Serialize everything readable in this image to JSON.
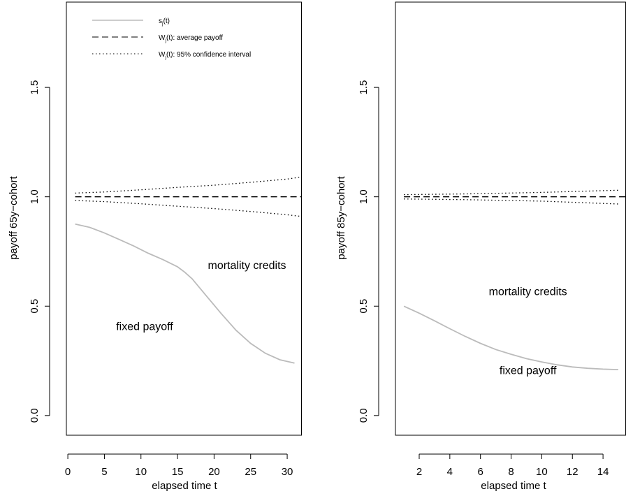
{
  "chart_data": [
    {
      "type": "line",
      "xlabel": "elapsed time t",
      "ylabel": "payoff 65y−cohort",
      "xlim": [
        -0.2,
        32
      ],
      "ylim": [
        -0.09,
        1.89
      ],
      "xticks": [
        0,
        5,
        10,
        15,
        20,
        25,
        30
      ],
      "yticks": [
        0.0,
        0.5,
        1.0,
        1.5
      ],
      "ytick_labels": [
        "0.0",
        "0.5",
        "1.0",
        "1.5"
      ],
      "legend": {
        "placement": "top-left",
        "entries": [
          {
            "label_main": "s",
            "label_sub": "j",
            "label_rest": "(t)",
            "style": "solid-gray"
          },
          {
            "label_main": "W",
            "label_sub": "j",
            "label_rest": "(t): average payoff",
            "style": "dashed"
          },
          {
            "label_main": "W",
            "label_sub": "j",
            "label_rest": "(t): 95% confidence interval",
            "style": "dotted"
          }
        ]
      },
      "annotations": [
        {
          "text": "mortality credits",
          "x": 24.5,
          "y": 0.67
        },
        {
          "text": "fixed payoff",
          "x": 10.5,
          "y": 0.39
        }
      ],
      "series": [
        {
          "style": "solid-gray",
          "color": "#bbbbbb",
          "x": [
            1,
            3,
            5,
            7,
            9,
            11,
            13,
            15,
            16,
            17,
            19,
            21,
            23,
            25,
            27,
            29,
            31
          ],
          "y": [
            0.875,
            0.86,
            0.835,
            0.805,
            0.775,
            0.742,
            0.713,
            0.68,
            0.655,
            0.625,
            0.545,
            0.465,
            0.39,
            0.33,
            0.285,
            0.255,
            0.24
          ]
        },
        {
          "style": "dashed",
          "color": "#000000",
          "x": [
            1,
            32
          ],
          "y": [
            1.0,
            1.0
          ]
        },
        {
          "style": "dotted",
          "color": "#000000",
          "x": [
            1,
            5,
            10,
            15,
            20,
            25,
            30,
            32
          ],
          "y": [
            1.017,
            1.022,
            1.032,
            1.043,
            1.053,
            1.066,
            1.081,
            1.091
          ]
        },
        {
          "style": "dotted",
          "color": "#000000",
          "x": [
            1,
            5,
            10,
            15,
            20,
            25,
            30,
            32
          ],
          "y": [
            0.983,
            0.978,
            0.968,
            0.957,
            0.946,
            0.933,
            0.918,
            0.91
          ]
        }
      ]
    },
    {
      "type": "line",
      "xlabel": "elapsed time t",
      "ylabel": "payoff 85y−cohort",
      "xlim": [
        0.45,
        15.5
      ],
      "ylim": [
        -0.09,
        1.89
      ],
      "xticks": [
        2,
        4,
        6,
        8,
        10,
        12,
        14
      ],
      "yticks": [
        0.0,
        0.5,
        1.0,
        1.5
      ],
      "ytick_labels": [
        "0.0",
        "0.5",
        "1.0",
        "1.5"
      ],
      "annotations": [
        {
          "text": "mortality credits",
          "x": 9.1,
          "y": 0.55
        },
        {
          "text": "fixed payoff",
          "x": 9.1,
          "y": 0.19
        }
      ],
      "series": [
        {
          "style": "solid-gray",
          "color": "#bbbbbb",
          "x": [
            1,
            2,
            3,
            4,
            5,
            6,
            7,
            8,
            9,
            10,
            11,
            12,
            13,
            14,
            15
          ],
          "y": [
            0.5,
            0.468,
            0.433,
            0.397,
            0.362,
            0.33,
            0.302,
            0.28,
            0.26,
            0.245,
            0.232,
            0.222,
            0.216,
            0.212,
            0.21
          ]
        },
        {
          "style": "dashed",
          "color": "#000000",
          "x": [
            1,
            15.5
          ],
          "y": [
            1.0,
            1.0
          ]
        },
        {
          "style": "dotted",
          "color": "#000000",
          "x": [
            1,
            5,
            10,
            15
          ],
          "y": [
            1.01,
            1.013,
            1.02,
            1.03
          ]
        },
        {
          "style": "dotted",
          "color": "#000000",
          "x": [
            1,
            5,
            10,
            15
          ],
          "y": [
            0.99,
            0.987,
            0.98,
            0.967
          ]
        }
      ]
    }
  ]
}
